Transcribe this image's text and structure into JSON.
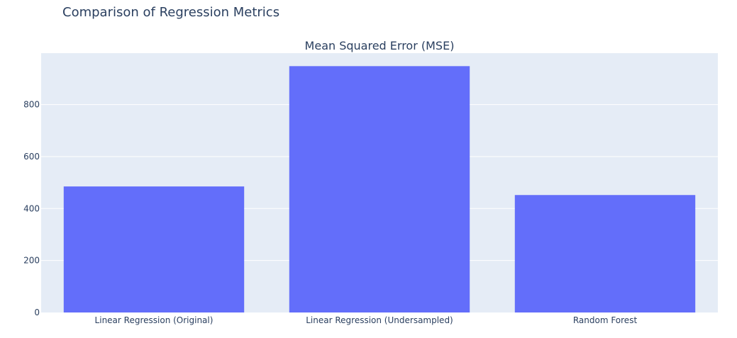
{
  "page_title": "Comparison of Regression Metrics",
  "colors": {
    "plot_background": "#e5ecf6",
    "bar": "#636efa",
    "grid": "#ffffff",
    "text": "#2a3f5f"
  },
  "chart_data": {
    "type": "bar",
    "title": "Mean Squared Error (MSE)",
    "xlabel": "",
    "ylabel": "",
    "categories": [
      "Linear Regression (Original)",
      "Linear Regression (Undersampled)",
      "Random Forest"
    ],
    "values": [
      485,
      948,
      452
    ],
    "ylim": [
      0,
      998
    ],
    "yticks": [
      0,
      200,
      400,
      600,
      800
    ],
    "ytick_labels": [
      "0",
      "200",
      "400",
      "600",
      "800"
    ],
    "grid": true,
    "legend": "none"
  }
}
